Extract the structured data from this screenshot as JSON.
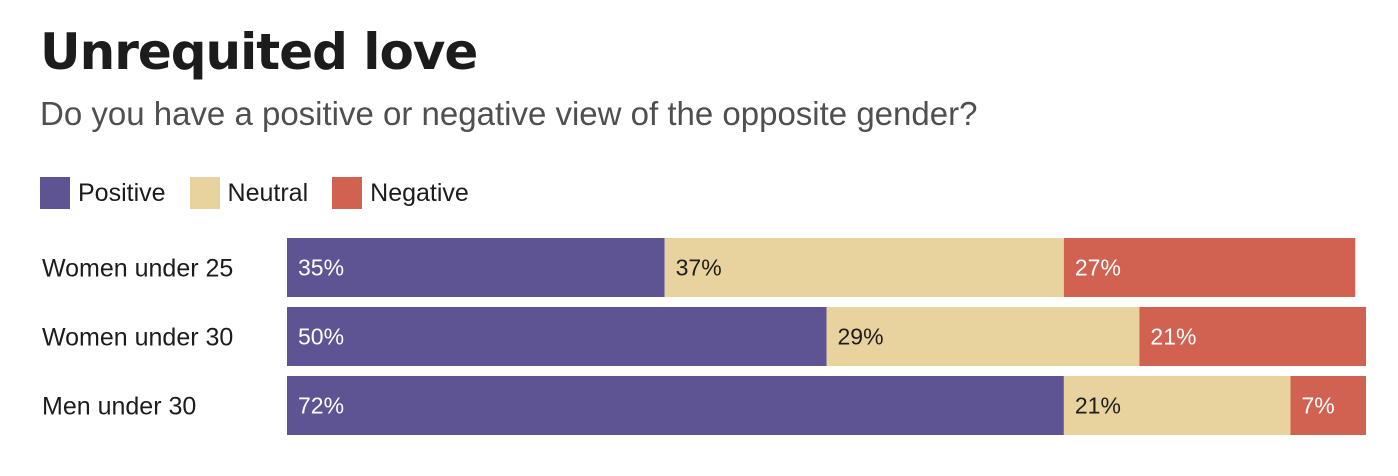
{
  "title": "Unrequited love",
  "subtitle": "Do you have a positive or negative view of the opposite gender?",
  "legend": [
    {
      "label": "Positive",
      "color": "#5e5494"
    },
    {
      "label": "Neutral",
      "color": "#e8d39f"
    },
    {
      "label": "Negative",
      "color": "#d16252"
    }
  ],
  "chart_data": {
    "type": "bar",
    "orientation": "horizontal",
    "stacked": true,
    "categories": [
      "Women under 25",
      "Women under 30",
      "Men under 30"
    ],
    "series": [
      {
        "name": "Positive",
        "color": "#5e5494",
        "text_color": "#ffffff",
        "values": [
          35,
          50,
          72
        ],
        "labels": [
          "35%",
          "50%",
          "72%"
        ]
      },
      {
        "name": "Neutral",
        "color": "#e8d39f",
        "text_color": "#1c1c1c",
        "values": [
          37,
          29,
          21
        ],
        "labels": [
          "37%",
          "29%",
          "21%"
        ]
      },
      {
        "name": "Negative",
        "color": "#d16252",
        "text_color": "#ffffff",
        "values": [
          27,
          21,
          7
        ],
        "labels": [
          "27%",
          "21%",
          "7%"
        ]
      }
    ],
    "xlim": [
      0,
      100
    ],
    "legend_position": "top-left",
    "grid": false
  }
}
